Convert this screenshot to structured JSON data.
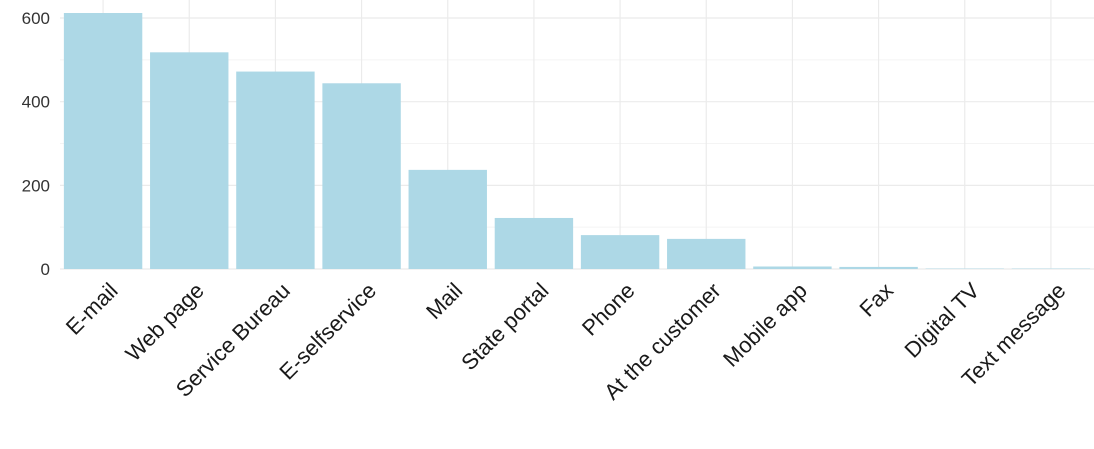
{
  "chart_data": {
    "type": "bar",
    "title": "",
    "xlabel": "",
    "ylabel": "",
    "categories": [
      "E-mail",
      "Web page",
      "Service Bureau",
      "E-selfservice",
      "Mail",
      "State portal",
      "Phone",
      "At the customer",
      "Mobile app",
      "Fax",
      "Digital TV",
      "Text message"
    ],
    "values": [
      612,
      518,
      472,
      444,
      237,
      122,
      81,
      72,
      6,
      5,
      1,
      1
    ],
    "ylim": [
      0,
      620
    ],
    "yticks": [
      0,
      200,
      400,
      600
    ],
    "grid": true,
    "legend": "none",
    "bar_color": "#add8e6",
    "grid_color": "#ebebeb"
  }
}
